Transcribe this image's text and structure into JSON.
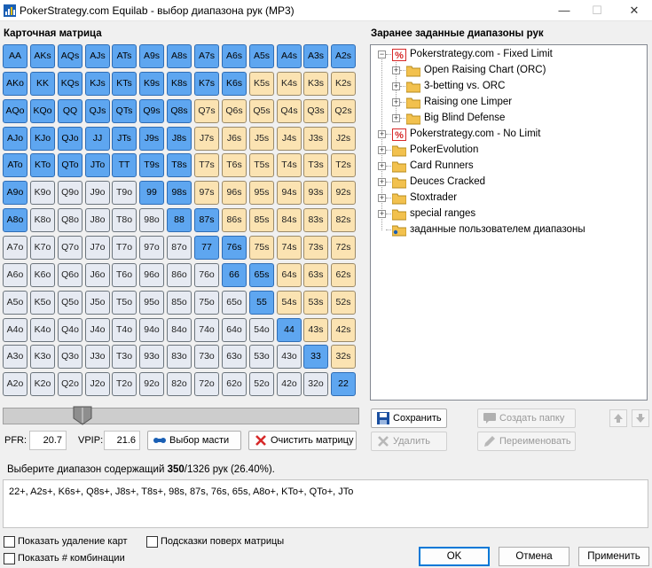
{
  "window": {
    "title": "PokerStrategy.com Equilab - выбор диапазона рук (MP3)",
    "minimize": "—",
    "maximize": "☐",
    "close": "✕"
  },
  "matrix": {
    "heading": "Карточная матрица",
    "ranks": [
      "A",
      "K",
      "Q",
      "J",
      "T",
      "9",
      "8",
      "7",
      "6",
      "5",
      "4",
      "3",
      "2"
    ],
    "selected": [
      "AA",
      "AKs",
      "AQs",
      "AJs",
      "ATs",
      "A9s",
      "A8s",
      "A7s",
      "A6s",
      "A5s",
      "A4s",
      "A3s",
      "A2s",
      "AKo",
      "KK",
      "KQs",
      "KJs",
      "KTs",
      "K9s",
      "K8s",
      "K7s",
      "K6s",
      "AQo",
      "KQo",
      "QQ",
      "QJs",
      "QTs",
      "Q9s",
      "Q8s",
      "AJo",
      "KJo",
      "QJo",
      "JJ",
      "JTs",
      "J9s",
      "J8s",
      "ATo",
      "KTo",
      "QTo",
      "JTo",
      "TT",
      "T9s",
      "T8s",
      "A9o",
      "99",
      "98s",
      "A8o",
      "88",
      "87s",
      "77",
      "76s",
      "66",
      "65s",
      "55",
      "44",
      "33",
      "22"
    ],
    "highlighted": [
      "K5s",
      "K4s",
      "K3s",
      "K2s",
      "Q7s",
      "Q6s",
      "Q5s",
      "Q4s",
      "Q3s",
      "Q2s",
      "J7s",
      "J6s",
      "J5s",
      "J4s",
      "J3s",
      "J2s",
      "T7s",
      "T6s",
      "T5s",
      "T4s",
      "T3s",
      "T2s",
      "97s",
      "96s",
      "95s",
      "94s",
      "93s",
      "92s",
      "86s",
      "85s",
      "84s",
      "83s",
      "82s",
      "75s",
      "74s",
      "73s",
      "72s",
      "64s",
      "63s",
      "62s",
      "54s",
      "53s",
      "52s",
      "43s",
      "42s",
      "32s"
    ]
  },
  "controls": {
    "slider_percent": 26.4,
    "pfr_label": "PFR:",
    "pfr_value": "20.7",
    "vpip_label": "VPIP:",
    "vpip_value": "21.6",
    "suits_button": "Выбор масти",
    "clear_button": "Очистить матрицу"
  },
  "predef": {
    "heading": "Заранее заданные диапазоны рук",
    "tree": [
      {
        "label": "Pokerstrategy.com - Fixed Limit",
        "level": 0,
        "icon": "ps-logo-icon",
        "expanded": true
      },
      {
        "label": "Open Raising Chart (ORC)",
        "level": 1,
        "icon": "folder-icon"
      },
      {
        "label": "3-betting vs. ORC",
        "level": 1,
        "icon": "folder-icon"
      },
      {
        "label": "Raising one Limper",
        "level": 1,
        "icon": "folder-icon"
      },
      {
        "label": "Big Blind Defense",
        "level": 1,
        "icon": "folder-icon"
      },
      {
        "label": "Pokerstrategy.com - No Limit",
        "level": 0,
        "icon": "ps-logo-icon"
      },
      {
        "label": "PokerEvolution",
        "level": 0,
        "icon": "folder-icon"
      },
      {
        "label": "Card Runners",
        "level": 0,
        "icon": "folder-icon"
      },
      {
        "label": "Deuces Cracked",
        "level": 0,
        "icon": "folder-icon"
      },
      {
        "label": "Stoxtrader",
        "level": 0,
        "icon": "folder-icon"
      },
      {
        "label": "special ranges",
        "level": 0,
        "icon": "folder-icon"
      },
      {
        "label": "заданные пользователем диапазоны",
        "level": 0,
        "icon": "user-folder-icon",
        "noexp": true
      }
    ],
    "save": "Сохранить",
    "create_folder": "Создать папку",
    "delete": "Удалить",
    "rename": "Переименовать"
  },
  "summary": {
    "prefix": "Выберите диапазон содержащий ",
    "count": "350",
    "suffix": "/1326 рук (26.40%)."
  },
  "range_text": "22+, A2s+, K6s+, Q8s+, J8s+, T8s+, 98s, 87s, 76s, 65s, A8o+, KTo+, QTo+, JTo",
  "options": {
    "show_dead": "Показать удаление карт",
    "tooltips": "Подсказки поверх матрицы",
    "show_combos": "Показать # комбинации"
  },
  "footer": {
    "ok": "OK",
    "cancel": "Отмена",
    "apply": "Применить"
  },
  "colors": {
    "selected": "#5ea6f0",
    "highlighted": "#fbe3b2",
    "unselected": "#e6eaf2"
  }
}
